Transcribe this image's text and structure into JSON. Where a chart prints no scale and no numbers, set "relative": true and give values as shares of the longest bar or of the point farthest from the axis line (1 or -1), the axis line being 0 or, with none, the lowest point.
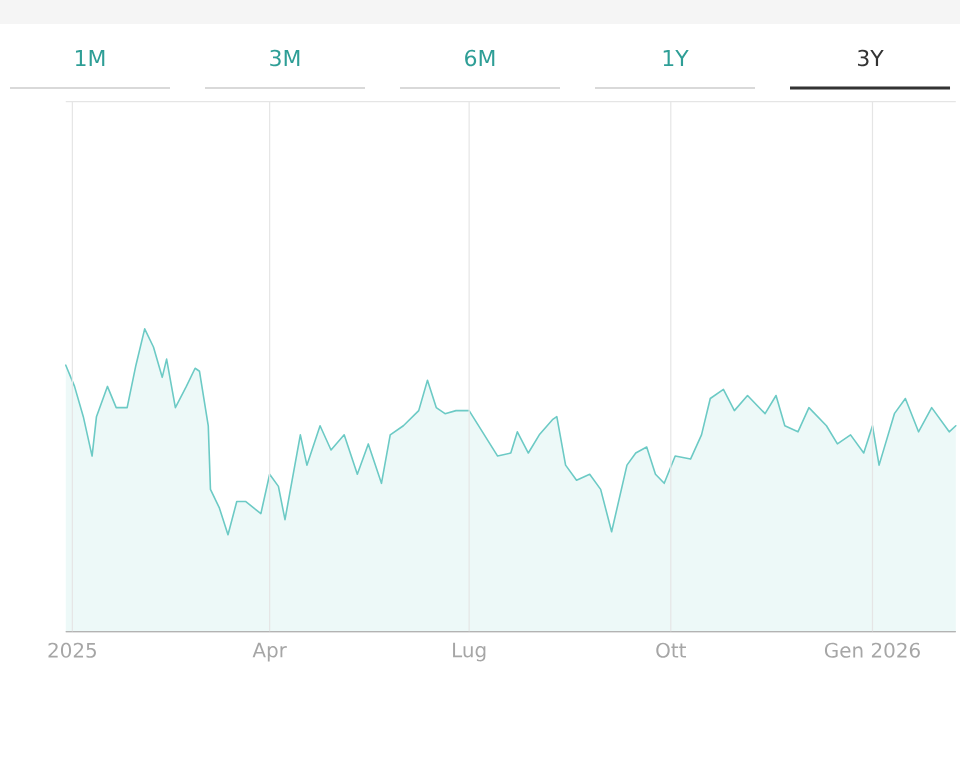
{
  "chart_data": {
    "type": "area",
    "relative": true,
    "color": "#6ccac5",
    "grid": true,
    "annotations": [
      "1M",
      "3M",
      "6M",
      "1Y",
      "3Y"
    ],
    "xlim": [
      "2024-12-29",
      "2026-02-08"
    ],
    "xticks": [
      {
        "value": "2025-01-01",
        "label": "2025"
      },
      {
        "value": "2025-04-01",
        "label": "Apr"
      },
      {
        "value": "2025-07-01",
        "label": "Lug"
      },
      {
        "value": "2025-10-01",
        "label": "Ott"
      },
      {
        "value": "2026-01-01",
        "label": "Gen 2026"
      }
    ],
    "x": [
      "2024-12-29",
      "2025-01-02",
      "2025-01-06",
      "2025-01-10",
      "2025-01-12",
      "2025-01-17",
      "2025-01-21",
      "2025-01-26",
      "2025-01-30",
      "2025-02-03",
      "2025-02-07",
      "2025-02-11",
      "2025-02-13",
      "2025-02-17",
      "2025-02-22",
      "2025-02-26",
      "2025-02-28",
      "2025-03-04",
      "2025-03-05",
      "2025-03-09",
      "2025-03-13",
      "2025-03-17",
      "2025-03-21",
      "2025-03-28",
      "2025-04-01",
      "2025-04-05",
      "2025-04-08",
      "2025-04-15",
      "2025-04-18",
      "2025-04-24",
      "2025-04-29",
      "2025-05-05",
      "2025-05-11",
      "2025-05-16",
      "2025-05-22",
      "2025-05-26",
      "2025-06-01",
      "2025-06-08",
      "2025-06-12",
      "2025-06-16",
      "2025-06-20",
      "2025-06-25",
      "2025-07-01",
      "2025-07-14",
      "2025-07-20",
      "2025-07-23",
      "2025-07-28",
      "2025-08-02",
      "2025-08-08",
      "2025-08-10",
      "2025-08-14",
      "2025-08-19",
      "2025-08-25",
      "2025-08-30",
      "2025-09-04",
      "2025-09-11",
      "2025-09-15",
      "2025-09-20",
      "2025-09-24",
      "2025-09-28",
      "2025-10-03",
      "2025-10-10",
      "2025-10-15",
      "2025-10-19",
      "2025-10-25",
      "2025-10-30",
      "2025-11-05",
      "2025-11-13",
      "2025-11-18",
      "2025-11-22",
      "2025-11-28",
      "2025-12-03",
      "2025-12-11",
      "2025-12-16",
      "2025-12-22",
      "2025-12-28",
      "2026-01-01",
      "2026-01-04",
      "2026-01-11",
      "2026-01-16",
      "2026-01-22",
      "2026-01-28",
      "2026-02-05",
      "2026-02-08"
    ],
    "values": [
      0.88,
      0.81,
      0.71,
      0.58,
      0.71,
      0.81,
      0.74,
      0.74,
      0.88,
      1.0,
      0.94,
      0.84,
      0.9,
      0.74,
      0.81,
      0.87,
      0.86,
      0.68,
      0.47,
      0.41,
      0.32,
      0.43,
      0.43,
      0.39,
      0.52,
      0.48,
      0.37,
      0.65,
      0.55,
      0.68,
      0.6,
      0.65,
      0.52,
      0.62,
      0.49,
      0.65,
      0.68,
      0.73,
      0.83,
      0.74,
      0.72,
      0.73,
      0.73,
      0.58,
      0.59,
      0.66,
      0.59,
      0.65,
      0.7,
      0.71,
      0.55,
      0.5,
      0.52,
      0.47,
      0.33,
      0.55,
      0.59,
      0.61,
      0.52,
      0.49,
      0.58,
      0.57,
      0.65,
      0.77,
      0.8,
      0.73,
      0.78,
      0.72,
      0.78,
      0.68,
      0.66,
      0.74,
      0.68,
      0.62,
      0.65,
      0.59,
      0.68,
      0.55,
      0.72,
      0.77,
      0.66,
      0.74,
      0.66,
      0.68
    ]
  }
}
